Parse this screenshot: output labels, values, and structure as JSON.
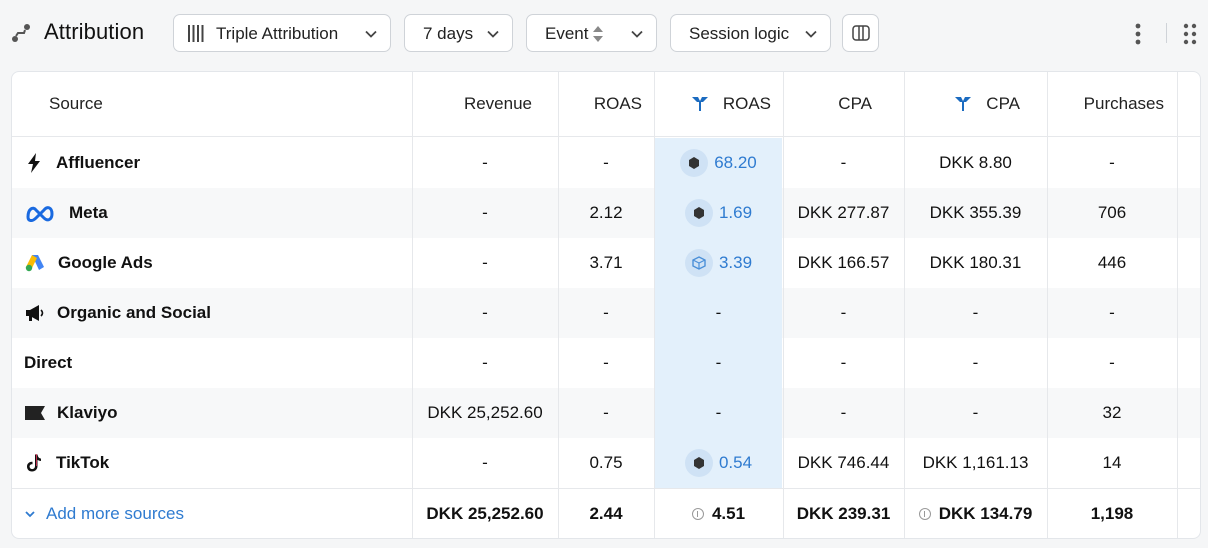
{
  "header": {
    "title": "Attribution",
    "attribution_model": "Triple Attribution",
    "date_range": "7 days",
    "event_mode": "Event",
    "session_logic": "Session logic"
  },
  "table": {
    "columns": {
      "source": "Source",
      "revenue": "Revenue",
      "roas": "ROAS",
      "triple_roas": "ROAS",
      "cpa": "CPA",
      "triple_cpa": "CPA",
      "purchases": "Purchases"
    },
    "rows": [
      {
        "source": "Affluencer",
        "icon": "lightning-icon",
        "revenue": "-",
        "roas": "-",
        "triple_roas": "68.20",
        "cpa": "-",
        "triple_cpa": "DKK 8.80",
        "purchases": "-"
      },
      {
        "source": "Meta",
        "icon": "meta-icon",
        "revenue": "-",
        "roas": "2.12",
        "triple_roas": "1.69",
        "cpa": "DKK 277.87",
        "triple_cpa": "DKK 355.39",
        "purchases": "706"
      },
      {
        "source": "Google Ads",
        "icon": "google-ads-icon",
        "revenue": "-",
        "roas": "3.71",
        "triple_roas": "3.39",
        "cpa": "DKK 166.57",
        "triple_cpa": "DKK 180.31",
        "purchases": "446"
      },
      {
        "source": "Organic and Social",
        "icon": "megaphone-icon",
        "revenue": "-",
        "roas": "-",
        "triple_roas": "-",
        "cpa": "-",
        "triple_cpa": "-",
        "purchases": "-"
      },
      {
        "source": "Direct",
        "icon": "",
        "revenue": "-",
        "roas": "-",
        "triple_roas": "-",
        "cpa": "-",
        "triple_cpa": "-",
        "purchases": "-"
      },
      {
        "source": "Klaviyo",
        "icon": "klaviyo-flag-icon",
        "revenue": "DKK 25,252.60",
        "roas": "-",
        "triple_roas": "-",
        "cpa": "-",
        "triple_cpa": "-",
        "purchases": "32"
      },
      {
        "source": "TikTok",
        "icon": "tiktok-icon",
        "revenue": "-",
        "roas": "0.75",
        "triple_roas": "0.54",
        "cpa": "DKK 746.44",
        "triple_cpa": "DKK 1,161.13",
        "purchases": "14"
      }
    ],
    "footer": {
      "add_more": "Add more sources",
      "revenue": "DKK 25,252.60",
      "roas": "2.44",
      "triple_roas": "4.51",
      "cpa": "DKK 239.31",
      "triple_cpa": "DKK 134.79",
      "purchases": "1,198"
    }
  },
  "colors": {
    "accent": "#2f7bd0",
    "highlight_column": "#e3f0fb",
    "triple_brand": "#1b6bc0"
  }
}
